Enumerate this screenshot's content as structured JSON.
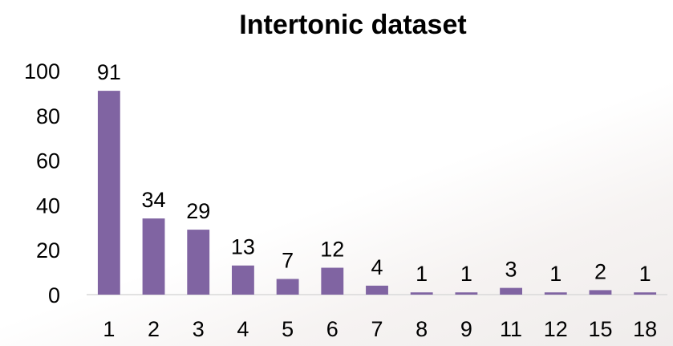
{
  "chart_data": {
    "type": "bar",
    "title": "Intertonic dataset",
    "xlabel": "",
    "ylabel": "",
    "categories": [
      "1",
      "2",
      "3",
      "4",
      "5",
      "6",
      "7",
      "8",
      "9",
      "11",
      "12",
      "15",
      "18"
    ],
    "values": [
      91,
      34,
      29,
      13,
      7,
      12,
      4,
      1,
      1,
      3,
      1,
      2,
      1
    ],
    "data_labels": [
      "91",
      "34",
      "29",
      "13",
      "7",
      "12",
      "4",
      "1",
      "1",
      "3",
      "1",
      "2",
      "1"
    ],
    "ylim": [
      0,
      100
    ],
    "y_ticks": [
      0,
      20,
      40,
      60,
      80,
      100
    ],
    "y_tick_labels": [
      "0",
      "20",
      "40",
      "60",
      "80",
      "100"
    ],
    "grid": false,
    "legend": "none",
    "bar_color": "#8064a2",
    "axis_color": "#d9d9d9"
  }
}
